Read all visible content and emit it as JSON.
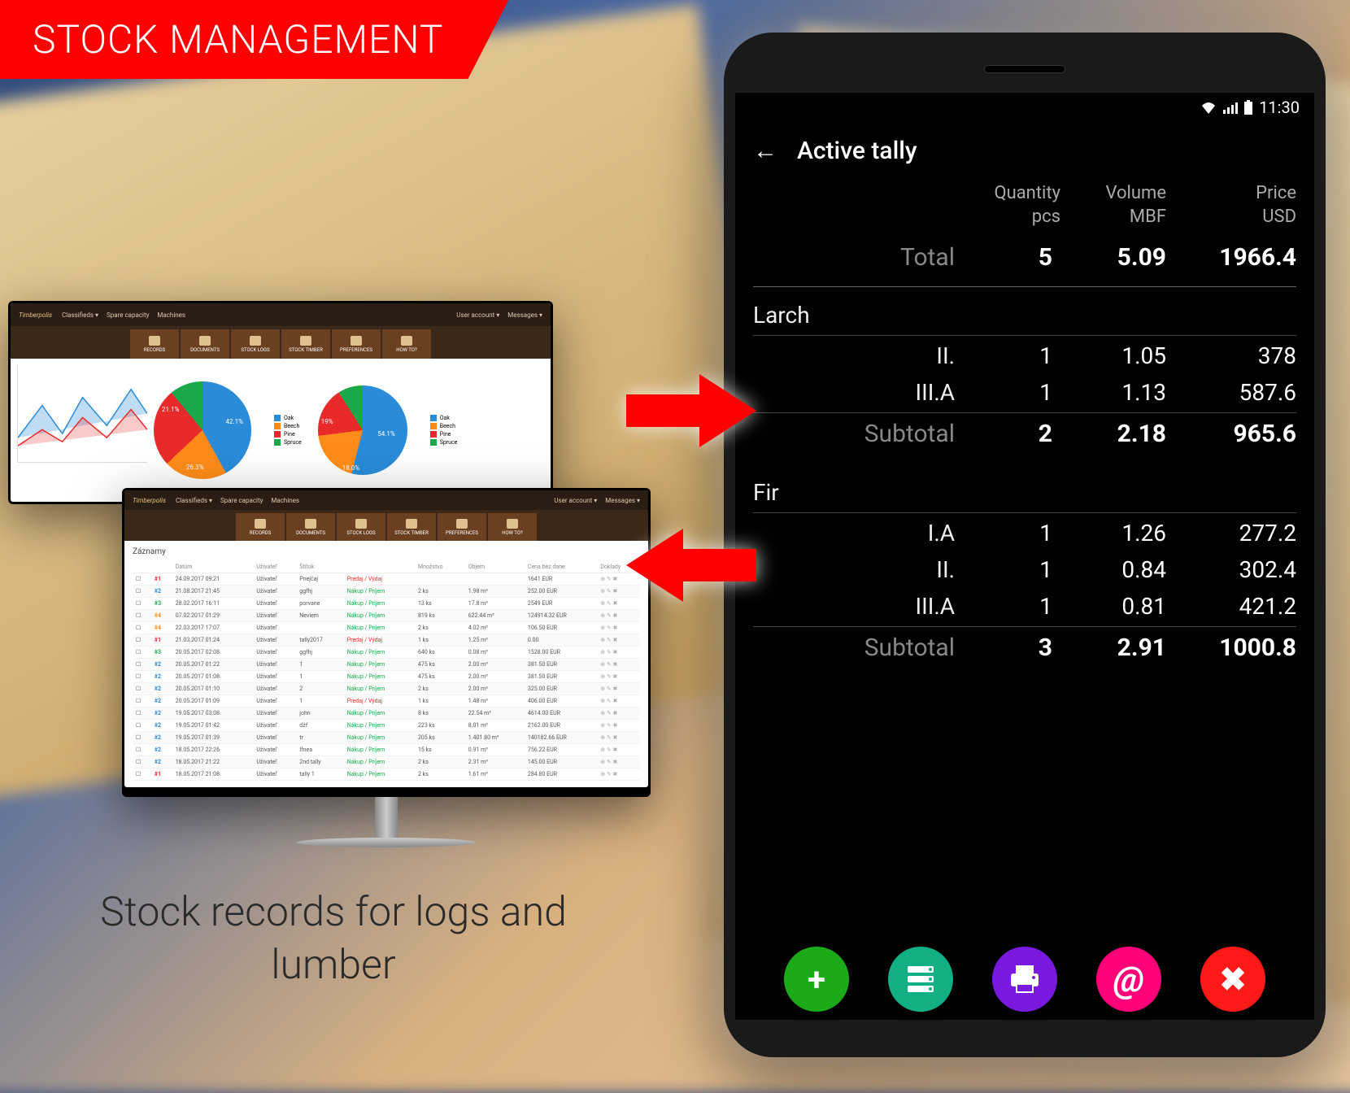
{
  "banner_title": "STOCK MANAGEMENT",
  "caption": "Stock records for logs and lumber",
  "colors": {
    "banner_bg": "#ff0000",
    "arrow": "#ff0000",
    "fab_add": "#1aaa1a",
    "fab_data": "#1aaa7a",
    "fab_print": "#7a1ae0",
    "fab_email": "#ff007a",
    "fab_close": "#ff0000"
  },
  "monitor1": {
    "brand": "Timberpolis",
    "top_menu": [
      "Classifieds ▾",
      "Spare capacity",
      "Machines"
    ],
    "right_menu": [
      "User account ▾",
      "Messages ▾"
    ],
    "nav": [
      "RECORDS",
      "DOCUMENTS",
      "STOCK LOGS",
      "STOCK TIMBER",
      "PREFERENCES",
      "HOW TO?"
    ],
    "legend_items": [
      {
        "label": "Oak",
        "color": "#2a8bd8"
      },
      {
        "label": "Beech",
        "color": "#ff8c1a"
      },
      {
        "label": "Pine",
        "color": "#e82a2a"
      },
      {
        "label": "Spruce",
        "color": "#1aa84a"
      }
    ],
    "pie1": {
      "slices": [
        {
          "label": "42.1%",
          "color": "#2a8bd8",
          "pct": 42
        },
        {
          "label": "21.1%",
          "color": "#ff8c1a",
          "pct": 21
        },
        {
          "label": "26.3%",
          "color": "#e82a2a",
          "pct": 26
        },
        {
          "label": "10.5%",
          "color": "#1aa84a",
          "pct": 11
        }
      ]
    },
    "pie2": {
      "slices": [
        {
          "label": "54.1%",
          "color": "#2a8bd8",
          "pct": 54
        },
        {
          "label": "19%",
          "color": "#ff8c1a",
          "pct": 19
        },
        {
          "label": "18.0%",
          "color": "#e82a2a",
          "pct": 18
        },
        {
          "label": "9%",
          "color": "#1aa84a",
          "pct": 9
        }
      ]
    },
    "area_chart": {
      "series": 2,
      "x_ticks": 5,
      "y_ticks": 5,
      "colors": [
        "#2a8bd8",
        "#ff8c1a"
      ]
    }
  },
  "monitor2": {
    "brand": "Timberpolis",
    "title": "Záznamy",
    "columns": [
      "",
      "",
      "Dátum",
      "Uživateľ",
      "Štítok",
      "",
      "Množstvo",
      "Objem",
      "Cena bez dane",
      "Doklady"
    ],
    "rows": [
      [
        "#1",
        "24.09.2017 09:21",
        "Uživateľ",
        "Pnejčaj",
        "Predaj / Výdaj",
        "",
        "",
        "1641 EUR"
      ],
      [
        "#2",
        "21.08.2017 21:45",
        "Uživateľ",
        "ggfhj",
        "Nákup / Príjem",
        "2 ks",
        "1.98 m³",
        "252.00 EUR"
      ],
      [
        "#3",
        "28.02.2017 16:11",
        "Uživateľ",
        "porvane",
        "Nákup / Príjem",
        "13 ks",
        "17.8 m³",
        "2549 EUR"
      ],
      [
        "#4",
        "07.02.2017 01:29",
        "Uživateľ",
        "Neviem",
        "Nákup / Príjem",
        "819 ks",
        "622.44 m³",
        "124914.32 EUR"
      ],
      [
        "#4",
        "22.03.2017 17:07",
        "Uživateľ",
        "",
        "Nákup / Príjem",
        "2 ks",
        "4.02 m³",
        "106.50 EUR"
      ],
      [
        "#1",
        "21.03.2017 01:24",
        "Uživateľ",
        "tally2017",
        "Predaj / Výdaj",
        "1 ks",
        "1.25 m³",
        "0.00"
      ],
      [
        "#3",
        "20.05.2017 02:08",
        "Uživateľ",
        "ggfhj",
        "Nákup / Príjem",
        "640 ks",
        "0.08 m³",
        "1528.00 EUR"
      ],
      [
        "#2",
        "20.05.2017 01:22",
        "Uživateľ",
        "1",
        "Nákup / Príjem",
        "475 ks",
        "2.00 m³",
        "381.50 EUR"
      ],
      [
        "#2",
        "20.05.2017 01:08",
        "Uživateľ",
        "1",
        "Nákup / Príjem",
        "475 ks",
        "2.00 m³",
        "381.50 EUR"
      ],
      [
        "#2",
        "20.05.2017 01:10",
        "Uživateľ",
        "2",
        "Nákup / Príjem",
        "2 ks",
        "2.00 m³",
        "325.00 EUR"
      ],
      [
        "#2",
        "20.05.2017 01:09",
        "Uživateľ",
        "1",
        "Predaj / Výdaj",
        "1 ks",
        "1.48 m³",
        "406.00 EUR"
      ],
      [
        "#2",
        "19.05.2017 03:08",
        "Uživateľ",
        "john",
        "Nákup / Príjem",
        "8 ks",
        "22.54 m³",
        "4614.00 EUR"
      ],
      [
        "#2",
        "19.05.2017 01:42",
        "Uživateľ",
        "džf",
        "Nákup / Príjem",
        "223 ks",
        "8.01 m³",
        "2162.00 EUR"
      ],
      [
        "#2",
        "19.05.2017 01:39",
        "Uživateľ",
        "tr",
        "Nákup / Príjem",
        "205 ks",
        "1.401.80 m³",
        "140182.66 EUR"
      ],
      [
        "#2",
        "18.05.2017 22:26",
        "Uživateľ",
        "Ifnea",
        "Nákup / Príjem",
        "15 ks",
        "0.91 m³",
        "756.22 EUR"
      ],
      [
        "#2",
        "18.05.2017 21:22",
        "Uživateľ",
        "2nd tally",
        "Nákup / Príjem",
        "2 ks",
        "2.31 m³",
        "145.00 EUR"
      ],
      [
        "#1",
        "18.05.2017 21:08",
        "Uživateľ",
        "tally 1",
        "Nákup / Príjem",
        "2 ks",
        "1.61 m³",
        "284.80 EUR"
      ]
    ]
  },
  "phone": {
    "status_time": "11:30",
    "title": "Active tally",
    "headers": {
      "c1": "",
      "c2": "Quantity",
      "c2u": "pcs",
      "c3": "Volume",
      "c3u": "MBF",
      "c4": "Price",
      "c4u": "USD"
    },
    "total": {
      "label": "Total",
      "qty": "5",
      "vol": "5.09",
      "price": "1966.4"
    },
    "groups": [
      {
        "name": "Larch",
        "rows": [
          {
            "cls": "II.",
            "qty": "1",
            "vol": "1.05",
            "price": "378"
          },
          {
            "cls": "III.A",
            "qty": "1",
            "vol": "1.13",
            "price": "587.6"
          }
        ],
        "subtotal": {
          "label": "Subtotal",
          "qty": "2",
          "vol": "2.18",
          "price": "965.6"
        }
      },
      {
        "name": "Fir",
        "rows": [
          {
            "cls": "I.A",
            "qty": "1",
            "vol": "1.26",
            "price": "277.2"
          },
          {
            "cls": "II.",
            "qty": "1",
            "vol": "0.84",
            "price": "302.4"
          },
          {
            "cls": "III.A",
            "qty": "1",
            "vol": "0.81",
            "price": "421.2"
          }
        ],
        "subtotal": {
          "label": "Subtotal",
          "qty": "3",
          "vol": "2.91",
          "price": "1000.8"
        }
      }
    ],
    "fabs": [
      {
        "name": "add",
        "icon": "+",
        "color": "#1aaa1a"
      },
      {
        "name": "data",
        "icon": "≡",
        "color": "#14b085"
      },
      {
        "name": "print",
        "icon": "🖶",
        "color": "#7a1ae0"
      },
      {
        "name": "email",
        "icon": "@",
        "color": "#ff007a"
      },
      {
        "name": "close",
        "icon": "✖",
        "color": "#ff1a1a"
      }
    ]
  }
}
